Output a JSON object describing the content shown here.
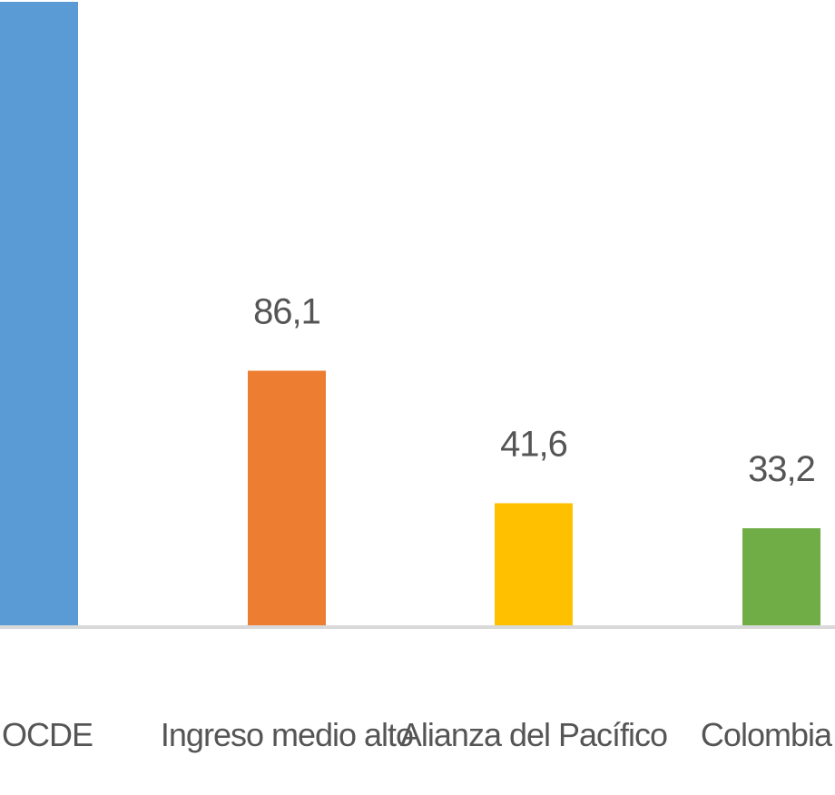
{
  "chart_data": {
    "type": "bar",
    "categories": [
      "OCDE",
      "Ingreso medio alto",
      "Alianza del Pacífico",
      "Colombia"
    ],
    "values": [
      210,
      86.1,
      41.6,
      33.2
    ],
    "value_labels": [
      "",
      "86,1",
      "41,6",
      "33,2"
    ],
    "colors": [
      "#5B9BD5",
      "#ED7D31",
      "#FFC000",
      "#70AD47"
    ],
    "ylim": [
      0,
      210
    ],
    "grid": false,
    "legend": "none",
    "title": "",
    "xlabel": "",
    "ylabel": ""
  },
  "colors": {
    "baseline": "#d9d9d9",
    "text": "#555555"
  }
}
